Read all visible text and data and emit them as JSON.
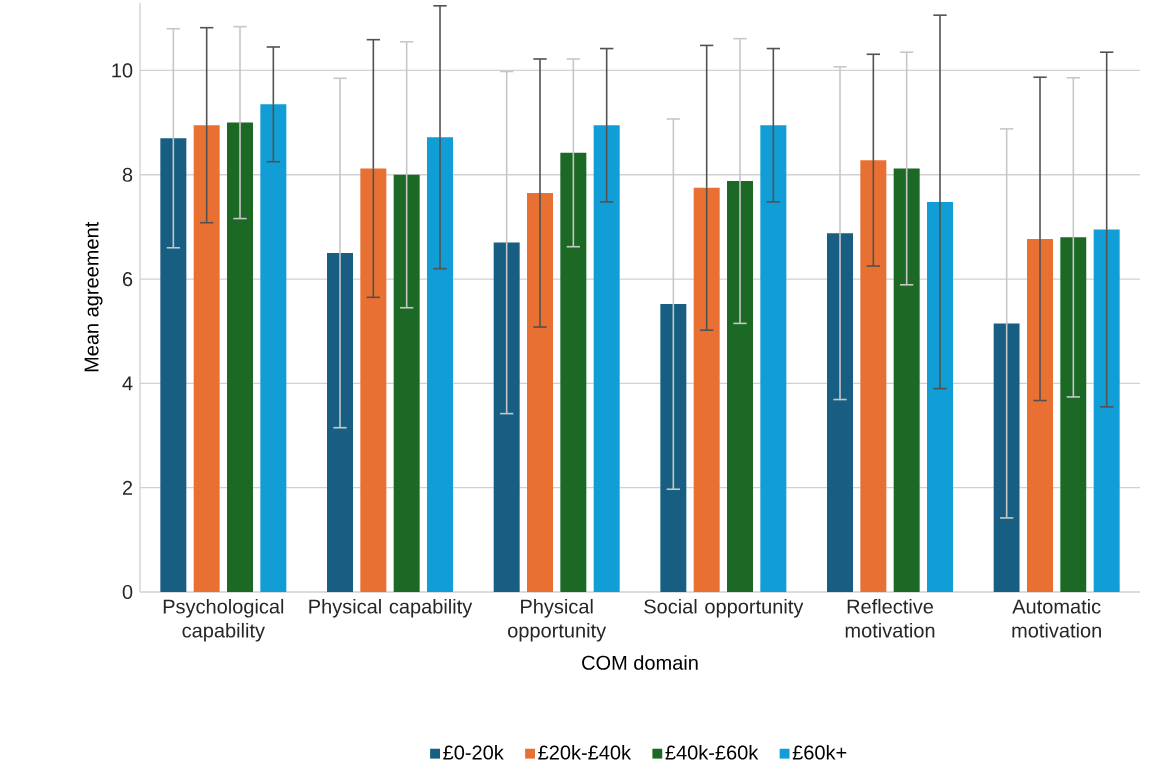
{
  "chart_data": {
    "type": "bar",
    "xlabel": "COM domain",
    "ylabel": "Mean agreement",
    "categories": [
      "Psychological capability",
      "Physical capability",
      "Physical opportunity",
      "Social opportunity",
      "Reflective motivation",
      "Automatic motivation"
    ],
    "series": [
      {
        "name": "£0-20k",
        "color": "#175e82",
        "values": [
          8.7,
          6.5,
          6.7,
          5.52,
          6.88,
          5.15
        ],
        "errors": [
          2.1,
          3.35,
          3.28,
          3.55,
          3.19,
          3.73
        ]
      },
      {
        "name": "£20k-£40k",
        "color": "#e87033",
        "values": [
          8.95,
          8.12,
          7.65,
          7.75,
          8.28,
          6.77
        ],
        "errors": [
          1.87,
          2.47,
          2.57,
          2.73,
          2.03,
          3.1
        ]
      },
      {
        "name": "£40k-£60k",
        "color": "#1b6924",
        "values": [
          9.0,
          8.0,
          8.42,
          7.88,
          8.12,
          6.8
        ],
        "errors": [
          1.84,
          2.55,
          1.8,
          2.73,
          2.23,
          3.06
        ]
      },
      {
        "name": "£60k+",
        "color": "#119dd5",
        "values": [
          9.35,
          8.72,
          8.95,
          8.95,
          7.48,
          6.95
        ],
        "errors": [
          1.1,
          2.52,
          1.47,
          1.47,
          3.58,
          3.4
        ]
      }
    ],
    "ylim": [
      0,
      11.3
    ],
    "yticks": [
      0,
      2,
      4,
      6,
      8,
      10
    ],
    "grid": "y",
    "legend": "bottom"
  }
}
